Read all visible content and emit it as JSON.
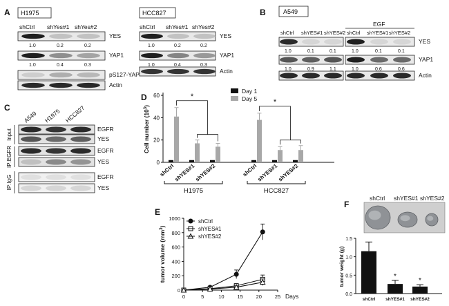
{
  "panel_A": {
    "letter": "A",
    "blot1": {
      "cell_line": "H1975",
      "lanes": [
        "shCtrl",
        "shYes#1",
        "shYes#2"
      ],
      "rows": [
        {
          "label": "YES",
          "quant": [
            "1.0",
            "0.2",
            "0.2"
          ],
          "intensity": [
            1.0,
            0.2,
            0.2
          ]
        },
        {
          "label": "YAP1",
          "quant": [
            "1.0",
            "0.4",
            "0.3"
          ],
          "intensity": [
            1.0,
            0.45,
            0.35
          ]
        },
        {
          "label": "pS127-YAP",
          "quant": [
            "1.0",
            "2.1",
            "1.7"
          ],
          "intensity": [
            0.15,
            0.3,
            0.25
          ]
        },
        {
          "label": "Actin",
          "quant": [],
          "intensity": [
            0.95,
            0.95,
            0.95
          ]
        }
      ]
    },
    "blot2": {
      "cell_line": "HCC827",
      "lanes": [
        "shCtrl",
        "shYes#1",
        "shYes#2"
      ],
      "rows": [
        {
          "label": "YES",
          "quant": [
            "1.0",
            "0.2",
            "0.2"
          ],
          "intensity": [
            1.0,
            0.2,
            0.2
          ]
        },
        {
          "label": "YAP1",
          "quant": [
            "1.0",
            "0.4",
            "0.3"
          ],
          "intensity": [
            1.0,
            0.5,
            0.4
          ]
        },
        {
          "label": "Actin",
          "quant": [],
          "intensity": [
            0.9,
            0.9,
            0.9
          ]
        }
      ]
    }
  },
  "panel_B": {
    "letter": "B",
    "cell_line": "A549",
    "treatment": "EGF",
    "lanes": [
      "shCtrl",
      "shYES#1",
      "shYES#2",
      "shCtrl",
      "shYES#1",
      "shYES#2"
    ],
    "rows": [
      {
        "label": "YES",
        "quant": [
          "1.0",
          "0.1",
          "0.1",
          "1.0",
          "0.1",
          "0.1"
        ],
        "intensity": [
          0.9,
          0.1,
          0.1,
          0.95,
          0.1,
          0.1
        ]
      },
      {
        "label": "YAP1",
        "quant": [
          "1.0",
          "0.9",
          "1.1",
          "1.0",
          "0.6",
          "0.6"
        ],
        "intensity": [
          0.7,
          0.65,
          0.7,
          0.95,
          0.6,
          0.6
        ]
      },
      {
        "label": "Actin",
        "quant": [],
        "intensity": [
          0.9,
          0.9,
          0.9,
          0.9,
          0.9,
          0.9
        ]
      }
    ]
  },
  "panel_C": {
    "letter": "C",
    "lanes": [
      "A549",
      "H1975",
      "HCC827"
    ],
    "groups": [
      {
        "label": "Input",
        "rows": [
          {
            "label": "EGFR",
            "intensity": [
              0.9,
              0.85,
              0.9
            ]
          },
          {
            "label": "YES",
            "intensity": [
              0.7,
              0.6,
              0.65
            ]
          }
        ]
      },
      {
        "label": "IP:EGFR",
        "rows": [
          {
            "label": "EGFR",
            "intensity": [
              0.9,
              0.85,
              0.9
            ]
          },
          {
            "label": "YES",
            "intensity": [
              0.2,
              0.45,
              0.4
            ]
          }
        ]
      },
      {
        "label": "IP:IgG",
        "rows": [
          {
            "label": "EGFR",
            "intensity": [
              0.05,
              0.05,
              0.05
            ]
          },
          {
            "label": "YES",
            "intensity": [
              0.1,
              0.1,
              0.1
            ]
          }
        ]
      }
    ]
  },
  "panel_F": {
    "letter": "F",
    "image_labels": [
      "shCtrl",
      "shYES#1",
      "shYES#2"
    ]
  },
  "chart_data": [
    {
      "id": "D",
      "type": "bar",
      "letter": "D",
      "ylabel": "Cell number (10",
      "ylabel_sup": "3",
      "ylabel_end": ")",
      "ylim": [
        0,
        60
      ],
      "yticks": [
        "0",
        "20",
        "40",
        "60"
      ],
      "groups": [
        {
          "name": "H1975",
          "categories": [
            "shCtrl",
            "shYES#1",
            "shYES#2"
          ]
        },
        {
          "name": "HCC827",
          "categories": [
            "shCtrl",
            "shYES#1",
            "shYES#2"
          ]
        }
      ],
      "series": [
        {
          "name": "Day 1",
          "color": "#111111",
          "values": [
            2,
            2,
            2,
            2,
            2,
            2
          ],
          "errors": [
            0,
            0,
            0,
            0,
            0,
            0
          ]
        },
        {
          "name": "Day 5",
          "color": "#a8a8a8",
          "values": [
            41,
            17,
            14,
            38,
            11,
            11
          ],
          "errors": [
            8,
            3,
            3,
            6,
            3,
            4
          ]
        }
      ],
      "significance": [
        {
          "group": "H1975",
          "label": "*"
        },
        {
          "group": "HCC827",
          "label": "*"
        }
      ],
      "legend": "top-right"
    },
    {
      "id": "E",
      "type": "line",
      "letter": "E",
      "ylabel": "tumor volume (mm",
      "ylabel_sup": "3",
      "ylabel_end": ")",
      "xlabel": "Days",
      "xlim": [
        0,
        25
      ],
      "ylim": [
        0,
        1000
      ],
      "xticks": [
        "0",
        "5",
        "10",
        "15",
        "20",
        "25"
      ],
      "yticks": [
        "0",
        "200",
        "400",
        "600",
        "800",
        "1000"
      ],
      "series": [
        {
          "name": "shCtrl",
          "marker": "filled-circle",
          "x": [
            0,
            7,
            14,
            21
          ],
          "y": [
            0,
            40,
            220,
            810
          ],
          "err": [
            0,
            15,
            60,
            110
          ]
        },
        {
          "name": "shYES#1",
          "marker": "open-square",
          "x": [
            0,
            7,
            14,
            21
          ],
          "y": [
            0,
            20,
            60,
            150
          ],
          "err": [
            0,
            10,
            30,
            60
          ]
        },
        {
          "name": "shYES#2",
          "marker": "open-triangle",
          "x": [
            0,
            7,
            14,
            21
          ],
          "y": [
            0,
            15,
            40,
            110
          ],
          "err": [
            0,
            8,
            20,
            45
          ]
        }
      ],
      "legend": "top-left"
    },
    {
      "id": "F",
      "type": "bar",
      "ylabel": "tumor weight (g)",
      "ylim": [
        0,
        1.5
      ],
      "yticks": [
        "0.0",
        "0.5",
        "1.0",
        "1.5"
      ],
      "categories": [
        "shCtrl",
        "shYES#1",
        "shYES#2"
      ],
      "values": [
        1.15,
        0.26,
        0.19
      ],
      "errors": [
        0.25,
        0.1,
        0.05
      ],
      "annotations": [
        "",
        "*",
        "*"
      ]
    }
  ]
}
